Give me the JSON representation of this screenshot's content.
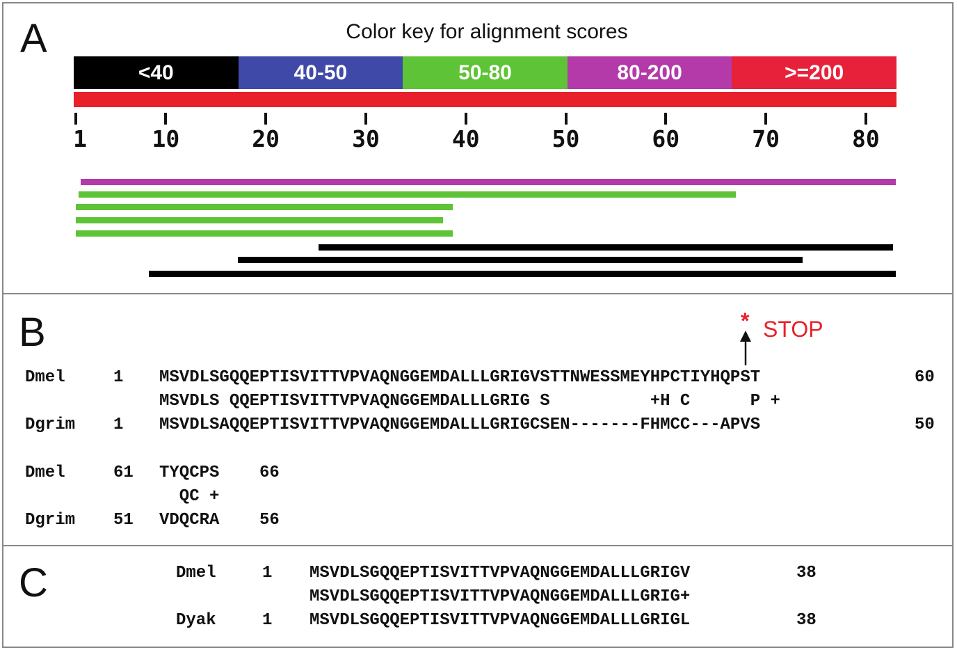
{
  "panel_a": {
    "letter": "A",
    "title": "Color key for alignment scores",
    "color_key": [
      {
        "label": "<40",
        "color": "#000000"
      },
      {
        "label": "40-50",
        "color": "#3f4aa8"
      },
      {
        "label": "50-80",
        "color": "#5ec336"
      },
      {
        "label": "80-200",
        "color": "#b33aa8"
      },
      {
        "label": ">=200",
        "color": "#e8213a"
      }
    ],
    "query_bar_color": "#e8202a",
    "axis": {
      "min": 1,
      "max": 83,
      "ticks": [
        "1",
        "10",
        "20",
        "30",
        "40",
        "50",
        "60",
        "70",
        "80"
      ]
    },
    "hits": [
      {
        "start": 1.5,
        "end": 83,
        "score_class": "80-200",
        "color": "#b33aa8"
      },
      {
        "start": 1.3,
        "end": 67,
        "score_class": "50-80",
        "color": "#5ec336"
      },
      {
        "start": 1,
        "end": 38.7,
        "score_class": "50-80",
        "color": "#5ec336"
      },
      {
        "start": 1,
        "end": 37.7,
        "score_class": "50-80",
        "color": "#5ec336"
      },
      {
        "start": 1,
        "end": 38.7,
        "score_class": "50-80",
        "color": "#5ec336"
      },
      {
        "start": 25.3,
        "end": 82.7,
        "score_class": "<40",
        "color": "#000000"
      },
      {
        "start": 17.2,
        "end": 73.7,
        "score_class": "<40",
        "color": "#000000"
      },
      {
        "start": 8.3,
        "end": 83,
        "score_class": "<40",
        "color": "#000000"
      }
    ]
  },
  "panel_b": {
    "letter": "B",
    "stop_star": "*",
    "stop_label": "STOP",
    "block1": {
      "query": {
        "name": "Dmel",
        "start": "1",
        "seq": "MSVDLSGQQEPTISVITTVPVAQNGGEMDALLLGRIGVSTTNWESSMEYHPCTIYHQPST",
        "end": "60"
      },
      "match": "MSVDLS QQEPTISVITTVPVAQNGGEMDALLLGRIG S          +H C      P +",
      "subject": {
        "name": "Dgrim",
        "start": "1",
        "seq": "MSVDLSAQQEPTISVITTVPVAQNGGEMDALLLGRIGCSEN-------FHMCC---APVS",
        "end": "50"
      }
    },
    "block2": {
      "query": {
        "name": "Dmel",
        "start": "61",
        "seq": "TYQCPS",
        "end": "66"
      },
      "match": "  QC +",
      "subject": {
        "name": "Dgrim",
        "start": "51",
        "seq": "VDQCRA",
        "end": "56"
      }
    }
  },
  "panel_c": {
    "letter": "C",
    "query": {
      "name": "Dmel",
      "start": "1",
      "seq": "MSVDLSGQQEPTISVITTVPVAQNGGEMDALLLGRIGV",
      "end": "38"
    },
    "match": "MSVDLSGQQEPTISVITTVPVAQNGGEMDALLLGRIG+",
    "subject": {
      "name": "Dyak",
      "start": "1",
      "seq": "MSVDLSGQQEPTISVITTVPVAQNGGEMDALLLGRIGL",
      "end": "38"
    }
  }
}
